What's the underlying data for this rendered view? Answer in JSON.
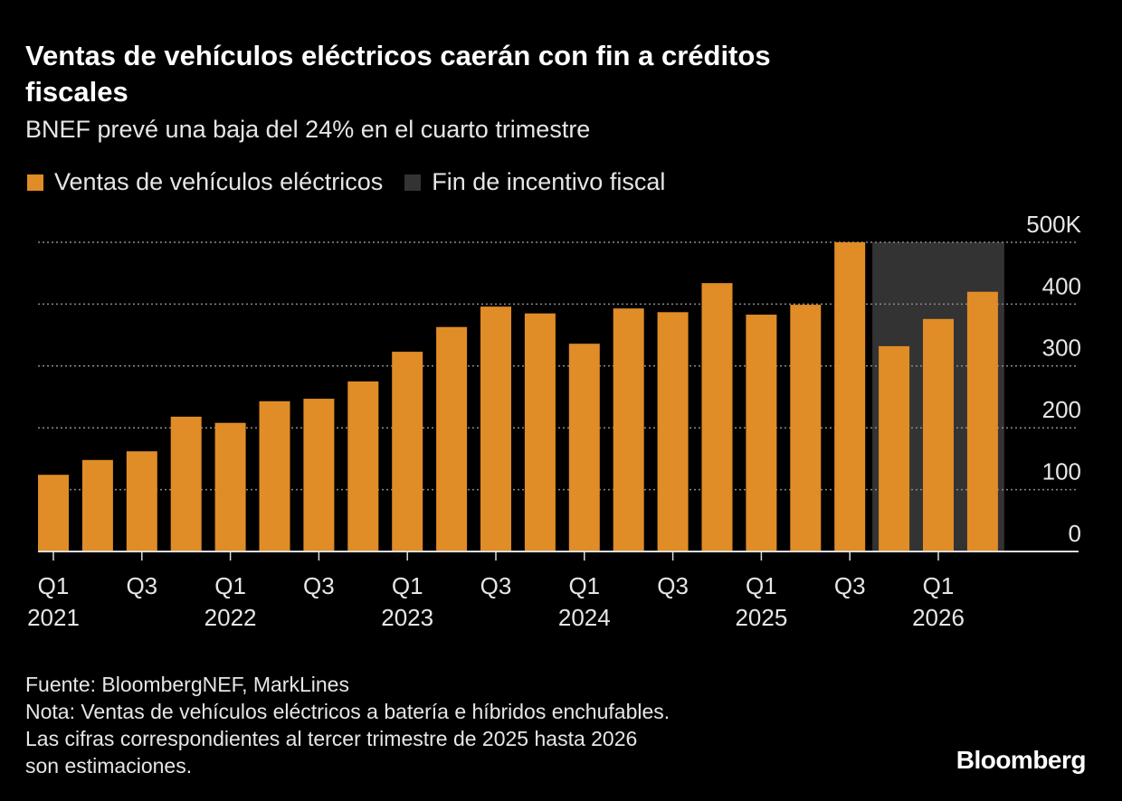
{
  "chart_data": {
    "type": "bar",
    "title": "Ventas de vehículos eléctricos caerán con fin a créditos fiscales",
    "subtitle": "BNEF prevé una baja del 24% en el cuarto trimestre",
    "categories": [
      "Q1",
      null,
      "Q3",
      null,
      "Q1",
      null,
      "Q3",
      null,
      "Q1",
      null,
      "Q3",
      null,
      "Q1",
      null,
      "Q3",
      null,
      "Q1",
      null,
      "Q3",
      null,
      "Q1",
      null
    ],
    "years": [
      "2021",
      null,
      null,
      null,
      "2022",
      null,
      null,
      null,
      "2023",
      null,
      null,
      null,
      "2024",
      null,
      null,
      null,
      "2025",
      null,
      null,
      null,
      "2026",
      null
    ],
    "series": [
      {
        "name": "Ventas de vehículos eléctricos",
        "color": "#e08c27",
        "values": [
          124,
          148,
          162,
          218,
          208,
          243,
          247,
          275,
          323,
          363,
          396,
          385,
          336,
          393,
          387,
          434,
          383,
          399,
          500,
          332,
          376,
          420
        ]
      }
    ],
    "shade": {
      "name": "Fin de incentivo fiscal",
      "color": "#333333",
      "from": 19,
      "to": 21
    },
    "ylim": [
      0,
      500
    ],
    "yticks": [
      0,
      100,
      200,
      300,
      400,
      {
        "value": 500,
        "label": "500K"
      }
    ],
    "grid": true,
    "source": "Fuente: BloombergNEF, MarkLines",
    "notes": [
      "Nota: Ventas de vehículos eléctricos a batería e híbridos enchufables.",
      "Las cifras correspondientes al tercer trimestre de 2025 hasta 2026",
      "son estimaciones."
    ],
    "brand": "Bloomberg"
  }
}
